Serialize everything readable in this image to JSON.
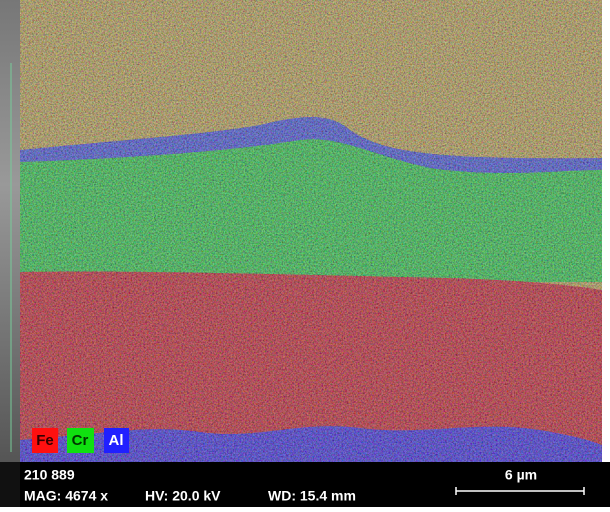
{
  "legend": [
    "Fe",
    "Cr",
    "Al"
  ],
  "footer": {
    "id": "210 889",
    "mag": "MAG: 4674 x",
    "hv": "HV: 20.0 kV",
    "wd": "WD: 15.4 mm",
    "scale": "6 µm"
  }
}
